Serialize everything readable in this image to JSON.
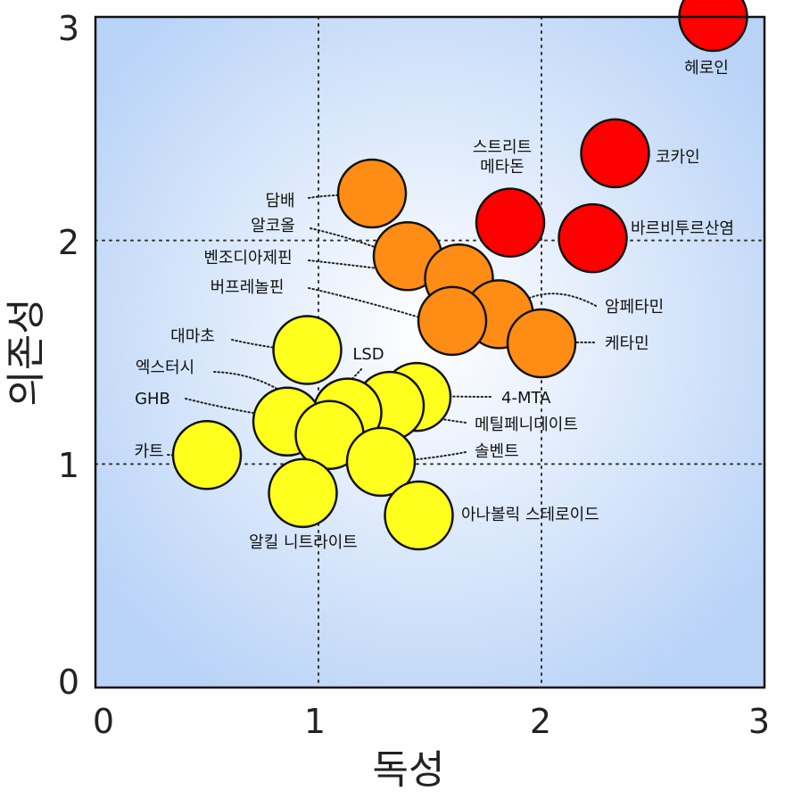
{
  "chart_data": {
    "type": "scatter",
    "title": "",
    "xlabel": "독성",
    "ylabel": "의존성",
    "xlim": [
      0,
      3
    ],
    "ylim": [
      0,
      3
    ],
    "x_ticks": [
      "0",
      "1",
      "2",
      "3"
    ],
    "y_ticks": [
      "0",
      "1",
      "2",
      "3"
    ],
    "grid": "dotted lines at 1 and 2",
    "colors": {
      "background_center": "#ffffff",
      "background_edge": "#b9d3f7",
      "red": "#ff0000",
      "orange": "#ff8c14",
      "yellow": "#ffff1e"
    },
    "points": [
      {
        "label": "헤로인",
        "x": 2.77,
        "y": 3.0,
        "color": "red"
      },
      {
        "label": "코카인",
        "x": 2.33,
        "y": 2.39,
        "color": "red"
      },
      {
        "label": "스트리트\n메타돈",
        "x": 1.86,
        "y": 2.08,
        "color": "red"
      },
      {
        "label": "바르비투르산염",
        "x": 2.23,
        "y": 2.01,
        "color": "red"
      },
      {
        "label": "담배",
        "x": 1.24,
        "y": 2.21,
        "color": "orange"
      },
      {
        "label": "알코올",
        "x": 1.4,
        "y": 1.93,
        "color": "orange"
      },
      {
        "label": "벤조디아제핀",
        "x": 1.63,
        "y": 1.83,
        "color": "orange"
      },
      {
        "label": "버프레놀핀",
        "x": 1.6,
        "y": 1.64,
        "color": "orange"
      },
      {
        "label": "암페타민",
        "x": 1.81,
        "y": 1.67,
        "color": "orange"
      },
      {
        "label": "케타민",
        "x": 2.0,
        "y": 1.54,
        "color": "orange"
      },
      {
        "label": "대마초",
        "x": 0.95,
        "y": 1.51,
        "color": "yellow"
      },
      {
        "label": "LSD",
        "x": 1.13,
        "y": 1.23,
        "color": "yellow"
      },
      {
        "label": "4-MTA",
        "x": 1.44,
        "y": 1.3,
        "color": "yellow"
      },
      {
        "label": "엑스터시",
        "x": 1.05,
        "y": 1.13,
        "color": "yellow"
      },
      {
        "label": "GHB",
        "x": 0.86,
        "y": 1.19,
        "color": "yellow"
      },
      {
        "label": "메틸페니데이트",
        "x": 1.32,
        "y": 1.26,
        "color": "yellow"
      },
      {
        "label": "솔벤트",
        "x": 1.28,
        "y": 1.01,
        "color": "yellow"
      },
      {
        "label": "카트",
        "x": 0.5,
        "y": 1.04,
        "color": "yellow"
      },
      {
        "label": "알킬 니트라이트",
        "x": 0.93,
        "y": 0.87,
        "color": "yellow"
      },
      {
        "label": "아나볼릭 스테로이드",
        "x": 1.45,
        "y": 0.77,
        "color": "yellow"
      }
    ]
  }
}
